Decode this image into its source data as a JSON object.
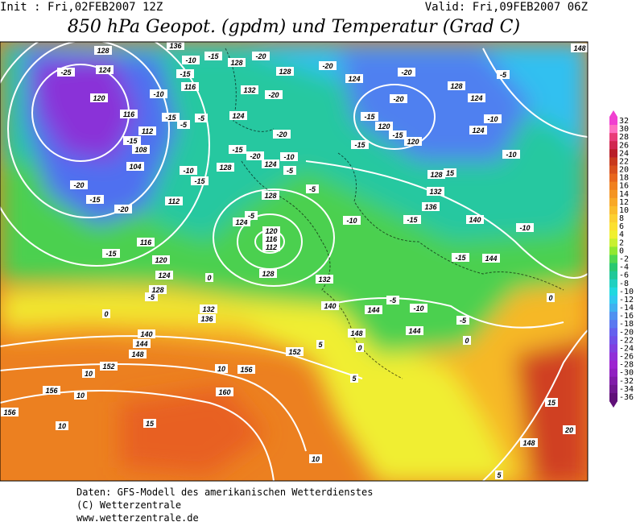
{
  "header": {
    "init": "Init : Fri,02FEB2007 12Z",
    "valid": "Valid: Fri,09FEB2007 06Z",
    "title": "850 hPa Geopot. (gpdm) und Temperatur (Grad C)"
  },
  "map": {
    "labels": [
      "128",
      "136",
      "124",
      "-25",
      "120",
      "116",
      "112",
      "108",
      "104",
      "-20",
      "-15",
      "-20",
      "112",
      "116",
      "-15",
      "120",
      "124",
      "128",
      "-5",
      "0",
      "0",
      "132",
      "136",
      "140",
      "144",
      "148",
      "152",
      "10",
      "156",
      "10",
      "160",
      "156",
      "10",
      "15",
      "10",
      "156",
      "10",
      "152",
      "5",
      "0",
      "148",
      "144",
      "140",
      "132",
      "128",
      "120",
      "116",
      "112",
      "124",
      "-5",
      "128",
      "-5",
      "-10",
      "-15",
      "140",
      "-10",
      "144",
      "-15",
      "-10",
      "-5",
      "144",
      "-5",
      "0",
      "0",
      "148",
      "-5",
      "-20",
      "128",
      "124",
      "-10",
      "124",
      "-10",
      "128",
      "15",
      "132",
      "136",
      "124",
      "-20",
      "128",
      "-20",
      "132",
      "-20",
      "-20",
      "-10",
      "124",
      "-5",
      "-15",
      "120",
      "-15",
      "120",
      "-20",
      "-15",
      "-15",
      "-20",
      "128",
      "-15",
      "-10",
      "-5",
      "-5",
      "124",
      "116",
      "-15",
      "-10",
      "-15",
      "128",
      "-10",
      "-15",
      "-15",
      "148",
      "20",
      "15",
      "5",
      "5"
    ]
  },
  "colorbar": {
    "values": [
      32,
      30,
      28,
      26,
      24,
      22,
      20,
      18,
      16,
      14,
      12,
      10,
      8,
      6,
      4,
      2,
      0,
      -2,
      -4,
      -6,
      -8,
      -10,
      -12,
      -14,
      -16,
      -18,
      -20,
      -22,
      -24,
      -26,
      -28,
      -30,
      -32,
      -34,
      -36
    ],
    "colors": [
      "#f040d0",
      "#ff70c0",
      "#e83c78",
      "#d02850",
      "#b81e28",
      "#c83a1e",
      "#d8501e",
      "#e8661e",
      "#f08020",
      "#f49422",
      "#f8a826",
      "#fabc2a",
      "#fcd030",
      "#fce030",
      "#f0f030",
      "#c8f030",
      "#90e830",
      "#50d850",
      "#28c870",
      "#20c898",
      "#20d0c0",
      "#20d8e0",
      "#30c8f0",
      "#40b0f0",
      "#5090f0",
      "#5a78f0",
      "#6460ee",
      "#7050e8",
      "#8040e0",
      "#9030d8",
      "#9c24d0",
      "#9020c0",
      "#801ca8",
      "#701890",
      "#601078"
    ]
  },
  "footer": [
    "Daten: GFS-Modell des amerikanischen Wetterdienstes",
    "(C) Wetterzentrale",
    "www.wetterzentrale.de"
  ]
}
